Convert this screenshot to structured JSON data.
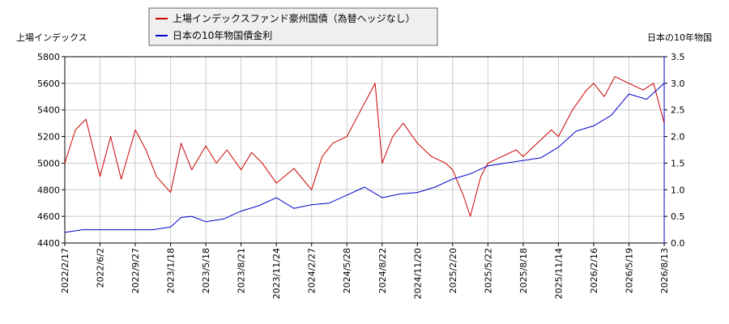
{
  "chart_data": {
    "type": "line",
    "ylabel_left": "上場インデックス",
    "ylabel_right": "日本の10年物国",
    "left_axis": {
      "ylim": [
        4400,
        5800
      ],
      "ticks": [
        4400,
        4600,
        4800,
        5000,
        5200,
        5400,
        5600,
        5800
      ],
      "color": "#cc0000"
    },
    "right_axis": {
      "ylim": [
        0,
        3.5
      ],
      "ticks": [
        "0.0",
        "0.5",
        "1.0",
        "1.5",
        "2.0",
        "2.5",
        "3.0",
        "3.5"
      ],
      "color": "#0000cc"
    },
    "grid": true,
    "legend_position": "top-center",
    "x_ticks": [
      "2022/2/17",
      "2022/6/2",
      "2022/9/27",
      "2023/1/18",
      "2023/5/18",
      "2023/8/21",
      "2023/11/24",
      "2024/2/27",
      "2024/5/28",
      "2024/8/22",
      "2024/11/20",
      "2025/2/20",
      "2025/5/22",
      "2025/8/18",
      "2025/11/14",
      "2026/2/16",
      "2026/5/19",
      "2026/8/13"
    ],
    "series": [
      {
        "name": "上場インデックスファンド豪州国債（為替ヘッジなし）",
        "axis": "left",
        "color": "#cc0000",
        "points": [
          [
            0,
            5000
          ],
          [
            0.3,
            5250
          ],
          [
            0.6,
            5330
          ],
          [
            1,
            4900
          ],
          [
            1.3,
            5200
          ],
          [
            1.6,
            4880
          ],
          [
            2,
            5250
          ],
          [
            2.3,
            5100
          ],
          [
            2.6,
            4900
          ],
          [
            3,
            4780
          ],
          [
            3.3,
            5150
          ],
          [
            3.6,
            4950
          ],
          [
            4,
            5130
          ],
          [
            4.3,
            5000
          ],
          [
            4.6,
            5100
          ],
          [
            5,
            4950
          ],
          [
            5.3,
            5080
          ],
          [
            5.6,
            5000
          ],
          [
            6,
            4850
          ],
          [
            6.5,
            4960
          ],
          [
            7,
            4800
          ],
          [
            7.3,
            5050
          ],
          [
            7.6,
            5150
          ],
          [
            8,
            5200
          ],
          [
            8.4,
            5400
          ],
          [
            8.8,
            5600
          ],
          [
            9,
            5000
          ],
          [
            9.3,
            5200
          ],
          [
            9.6,
            5300
          ],
          [
            10,
            5150
          ],
          [
            10.4,
            5050
          ],
          [
            10.8,
            5000
          ],
          [
            11,
            4950
          ],
          [
            11.3,
            4760
          ],
          [
            11.5,
            4600
          ],
          [
            11.8,
            4900
          ],
          [
            12,
            5000
          ],
          [
            12.4,
            5050
          ],
          [
            12.8,
            5100
          ],
          [
            13,
            5050
          ],
          [
            13.4,
            5150
          ],
          [
            13.8,
            5250
          ],
          [
            14,
            5200
          ],
          [
            14.4,
            5400
          ],
          [
            14.8,
            5550
          ],
          [
            15,
            5600
          ],
          [
            15.3,
            5500
          ],
          [
            15.6,
            5650
          ],
          [
            16,
            5600
          ],
          [
            16.4,
            5550
          ],
          [
            16.7,
            5600
          ],
          [
            17,
            5300
          ]
        ]
      },
      {
        "name": "日本の10年物国債金利",
        "axis": "right",
        "color": "#0000cc",
        "points": [
          [
            0,
            0.2
          ],
          [
            0.5,
            0.25
          ],
          [
            1,
            0.25
          ],
          [
            1.5,
            0.25
          ],
          [
            2,
            0.25
          ],
          [
            2.5,
            0.25
          ],
          [
            3,
            0.3
          ],
          [
            3.3,
            0.48
          ],
          [
            3.6,
            0.5
          ],
          [
            4,
            0.4
          ],
          [
            4.5,
            0.45
          ],
          [
            5,
            0.6
          ],
          [
            5.5,
            0.7
          ],
          [
            6,
            0.85
          ],
          [
            6.5,
            0.65
          ],
          [
            7,
            0.72
          ],
          [
            7.5,
            0.75
          ],
          [
            8,
            0.9
          ],
          [
            8.5,
            1.05
          ],
          [
            9,
            0.85
          ],
          [
            9.5,
            0.92
          ],
          [
            10,
            0.95
          ],
          [
            10.5,
            1.05
          ],
          [
            11,
            1.2
          ],
          [
            11.5,
            1.3
          ],
          [
            12,
            1.45
          ],
          [
            12.5,
            1.5
          ],
          [
            13,
            1.55
          ],
          [
            13.5,
            1.6
          ],
          [
            14,
            1.8
          ],
          [
            14.5,
            2.1
          ],
          [
            15,
            2.2
          ],
          [
            15.5,
            2.4
          ],
          [
            16,
            2.8
          ],
          [
            16.5,
            2.7
          ],
          [
            17,
            3.0
          ]
        ]
      }
    ]
  }
}
